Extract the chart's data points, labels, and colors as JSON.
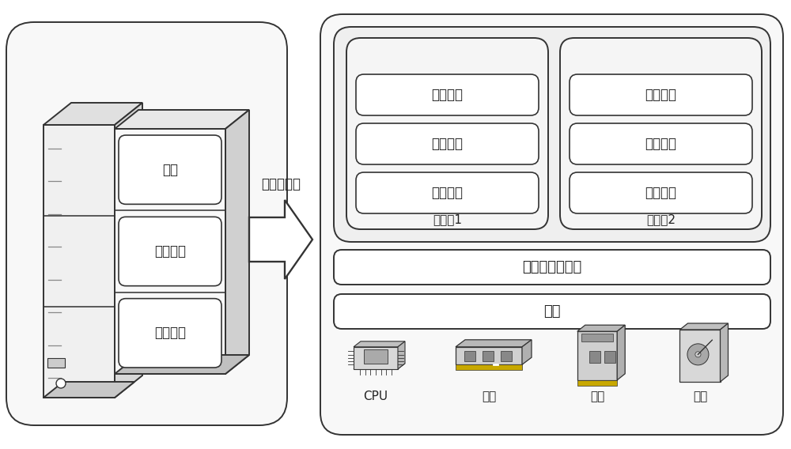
{
  "bg_color": "#ffffff",
  "ec": "#333333",
  "fc_white": "#ffffff",
  "fc_light": "#f5f5f5",
  "fc_gray": "#e8e8e8",
  "tc": "#222222",
  "fs_main": 13,
  "fs_label": 12,
  "fs_small": 11,
  "lw": 1.4,
  "arrow_label": "部署虚拟机",
  "server_layers": [
    "应用程序",
    "操作系统",
    "硬件"
  ],
  "vm1_layers": [
    "应用程序",
    "操作系统",
    "虚拟硬件"
  ],
  "vm2_layers": [
    "应用程序",
    "操作系统",
    "虚拟硬件"
  ],
  "vm1_label": "虚拟机1",
  "vm2_label": "虚拟机2",
  "host_os_label": "宿主机操作系统",
  "hardware_label": "硬件",
  "hw_components": [
    "CPU",
    "内存",
    "网卡",
    "磁盘"
  ]
}
